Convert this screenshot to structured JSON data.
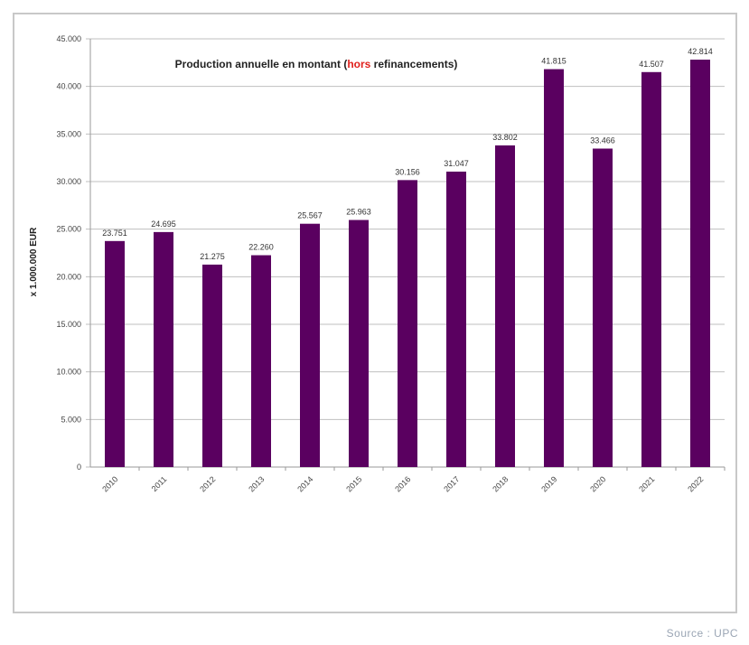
{
  "chart_data": {
    "type": "bar",
    "title_parts": {
      "prefix": "Production annuelle en montant (",
      "highlight": "hors",
      "suffix": " refinancements)"
    },
    "ylabel": "x 1.000.000 EUR",
    "xlabel": "",
    "ylim": [
      0,
      45000
    ],
    "yticks": [
      0,
      5000,
      10000,
      15000,
      20000,
      25000,
      30000,
      35000,
      40000,
      45000
    ],
    "ytick_labels": [
      "0",
      "5.000",
      "10.000",
      "15.000",
      "20.000",
      "25.000",
      "30.000",
      "35.000",
      "40.000",
      "45.000"
    ],
    "categories": [
      "2010",
      "2011",
      "2012",
      "2013",
      "2014",
      "2015",
      "2016",
      "2017",
      "2018",
      "2019",
      "2020",
      "2021",
      "2022"
    ],
    "values": [
      23751,
      24695,
      21275,
      22260,
      25567,
      25963,
      30156,
      31047,
      33802,
      41815,
      33466,
      41507,
      42814
    ],
    "data_labels": [
      "23.751",
      "24.695",
      "21.275",
      "22.260",
      "25.567",
      "25.963",
      "30.156",
      "31.047",
      "33.802",
      "41.815",
      "33.466",
      "41.507",
      "42.814"
    ],
    "grid": true,
    "legend": "none",
    "colors": {
      "bar": "#5a0060",
      "title_highlight": "#e0201c",
      "grid": "#bfbfbf"
    }
  },
  "source": "Source : UPC"
}
